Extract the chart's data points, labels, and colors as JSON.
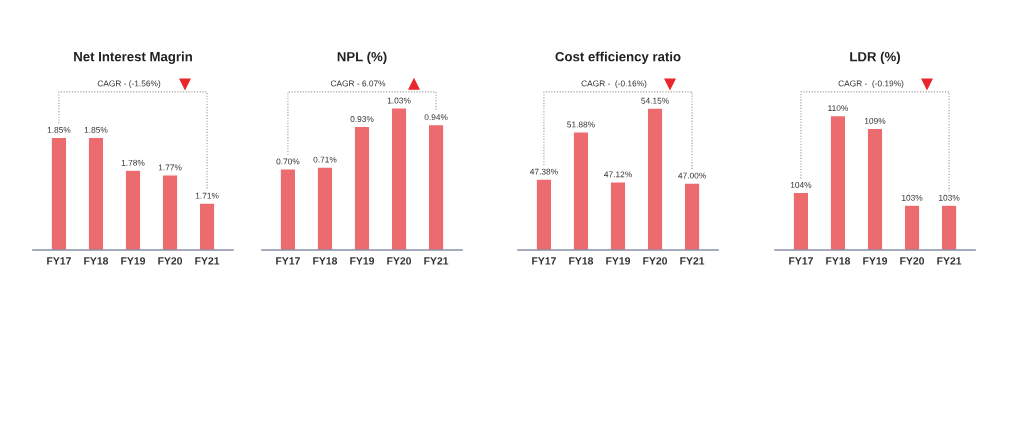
{
  "chart_data": [
    {
      "type": "bar",
      "title": "Net Interest Magrin",
      "categories": [
        "FY17",
        "FY18",
        "FY19",
        "FY20",
        "FY21"
      ],
      "values": [
        1.85,
        1.85,
        1.78,
        1.77,
        1.71
      ],
      "value_labels": [
        "1.85%",
        "1.85%",
        "1.78%",
        "1.77%",
        "1.71%"
      ],
      "color": "#ec6b6e",
      "ylim": [
        1.61,
        1.94
      ],
      "annotations": [
        "CAGR - (-1.56%)"
      ]
    },
    {
      "type": "bar",
      "title": "NPL (%)",
      "categories": [
        "FY17",
        "FY18",
        "FY19",
        "FY20",
        "FY21"
      ],
      "values": [
        0.7,
        0.71,
        0.93,
        1.03,
        0.94
      ],
      "value_labels": [
        "0.70%",
        "0.71%",
        "0.93%",
        "1.03%",
        "0.94%"
      ],
      "color": "#ec6b6e",
      "ylim": [
        0.26,
        1.1
      ],
      "annotations": [
        "CAGR - 6.07%"
      ]
    },
    {
      "type": "bar",
      "title": "Cost efficiency ratio",
      "categories": [
        "FY17",
        "FY18",
        "FY19",
        "FY20",
        "FY21"
      ],
      "values": [
        47.38,
        51.88,
        47.12,
        54.15,
        47.0
      ],
      "value_labels": [
        "47.38%",
        "51.88%",
        "47.12%",
        "54.15%",
        "47.00%"
      ],
      "color": "#ec6b6e",
      "ylim": [
        40.6,
        55.4
      ],
      "annotations": [
        "CAGR -  (-0.16%)"
      ]
    },
    {
      "type": "bar",
      "title": "LDR (%)",
      "categories": [
        "FY17",
        "FY18",
        "FY19",
        "FY20",
        "FY21"
      ],
      "values": [
        104,
        110,
        109,
        103,
        103
      ],
      "value_labels": [
        "104%",
        "110%",
        "109%",
        "103%",
        "103%"
      ],
      "color": "#ec6b6e",
      "ylim": [
        99.5,
        111.6
      ],
      "annotations": [
        "CAGR -  (-0.19%)"
      ]
    }
  ]
}
